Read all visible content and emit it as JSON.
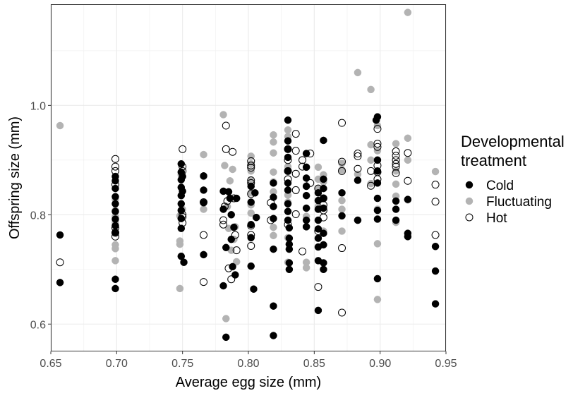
{
  "chart_data": {
    "type": "scatter",
    "xlabel": "Average egg size (mm)",
    "ylabel": "Offspring size (mm)",
    "xlim": [
      0.65,
      0.95
    ],
    "ylim": [
      0.55,
      1.185
    ],
    "x_ticks": [
      "0.65",
      "0.70",
      "0.75",
      "0.80",
      "0.85",
      "0.90",
      "0.95"
    ],
    "x_tick_values": [
      0.65,
      0.7,
      0.75,
      0.8,
      0.85,
      0.9,
      0.95
    ],
    "y_ticks": [
      "0.6",
      "0.8",
      "1.0"
    ],
    "y_tick_values": [
      0.6,
      0.8,
      1.0
    ],
    "grid": true,
    "theme": "bw",
    "legend": {
      "title_lines": [
        "Developmental",
        "treatment"
      ],
      "position": "right",
      "entries": [
        "Cold",
        "Fluctuating",
        "Hot"
      ]
    },
    "series": [
      {
        "name": "Cold",
        "marker": "filled-circle",
        "color": "#000000",
        "points": [
          [
            0.657,
            0.763
          ],
          [
            0.657,
            0.676
          ],
          [
            0.699,
            0.87
          ],
          [
            0.699,
            0.862
          ],
          [
            0.699,
            0.848
          ],
          [
            0.699,
            0.833
          ],
          [
            0.699,
            0.82
          ],
          [
            0.699,
            0.806
          ],
          [
            0.699,
            0.792
          ],
          [
            0.699,
            0.78
          ],
          [
            0.699,
            0.768
          ],
          [
            0.699,
            0.682
          ],
          [
            0.699,
            0.665
          ],
          [
            0.749,
            0.893
          ],
          [
            0.749,
            0.878
          ],
          [
            0.749,
            0.864
          ],
          [
            0.749,
            0.85
          ],
          [
            0.749,
            0.835
          ],
          [
            0.749,
            0.82
          ],
          [
            0.749,
            0.808
          ],
          [
            0.749,
            0.793
          ],
          [
            0.749,
            0.775
          ],
          [
            0.749,
            0.724
          ],
          [
            0.75,
            0.87
          ],
          [
            0.75,
            0.843
          ],
          [
            0.751,
            0.713
          ],
          [
            0.766,
            0.871
          ],
          [
            0.766,
            0.845
          ],
          [
            0.766,
            0.822
          ],
          [
            0.766,
            0.727
          ],
          [
            0.781,
            0.843
          ],
          [
            0.781,
            0.81
          ],
          [
            0.781,
            0.67
          ],
          [
            0.783,
            0.576
          ],
          [
            0.783,
            0.74
          ],
          [
            0.785,
            0.842
          ],
          [
            0.786,
            0.83
          ],
          [
            0.787,
            0.8
          ],
          [
            0.787,
            0.755
          ],
          [
            0.788,
            0.705
          ],
          [
            0.789,
            0.777
          ],
          [
            0.79,
            0.69
          ],
          [
            0.791,
            0.83
          ],
          [
            0.802,
            0.852
          ],
          [
            0.802,
            0.823
          ],
          [
            0.802,
            0.782
          ],
          [
            0.802,
            0.758
          ],
          [
            0.802,
            0.706
          ],
          [
            0.804,
            0.664
          ],
          [
            0.805,
            0.84
          ],
          [
            0.806,
            0.795
          ],
          [
            0.819,
            0.858
          ],
          [
            0.819,
            0.832
          ],
          [
            0.819,
            0.815
          ],
          [
            0.819,
            0.793
          ],
          [
            0.819,
            0.737
          ],
          [
            0.819,
            0.633
          ],
          [
            0.819,
            0.579
          ],
          [
            0.83,
            0.973
          ],
          [
            0.83,
            0.935
          ],
          [
            0.83,
            0.92
          ],
          [
            0.83,
            0.905
          ],
          [
            0.83,
            0.88
          ],
          [
            0.83,
            0.858
          ],
          [
            0.83,
            0.845
          ],
          [
            0.83,
            0.82
          ],
          [
            0.83,
            0.806
          ],
          [
            0.83,
            0.79
          ],
          [
            0.831,
            0.776
          ],
          [
            0.831,
            0.757
          ],
          [
            0.831,
            0.746
          ],
          [
            0.831,
            0.737
          ],
          [
            0.831,
            0.712
          ],
          [
            0.831,
            0.7
          ],
          [
            0.844,
            0.912
          ],
          [
            0.844,
            0.887
          ],
          [
            0.844,
            0.867
          ],
          [
            0.844,
            0.852
          ],
          [
            0.844,
            0.835
          ],
          [
            0.844,
            0.812
          ],
          [
            0.844,
            0.79
          ],
          [
            0.844,
            0.778
          ],
          [
            0.853,
            0.84
          ],
          [
            0.853,
            0.826
          ],
          [
            0.853,
            0.81
          ],
          [
            0.853,
            0.79
          ],
          [
            0.853,
            0.774
          ],
          [
            0.853,
            0.757
          ],
          [
            0.853,
            0.741
          ],
          [
            0.853,
            0.716
          ],
          [
            0.853,
            0.625
          ],
          [
            0.857,
            0.936
          ],
          [
            0.857,
            0.865
          ],
          [
            0.857,
            0.848
          ],
          [
            0.857,
            0.83
          ],
          [
            0.857,
            0.812
          ],
          [
            0.857,
            0.766
          ],
          [
            0.857,
            0.745
          ],
          [
            0.857,
            0.712
          ],
          [
            0.857,
            0.7
          ],
          [
            0.871,
            0.84
          ],
          [
            0.871,
            0.798
          ],
          [
            0.883,
            0.863
          ],
          [
            0.883,
            0.79
          ],
          [
            0.898,
            0.979
          ],
          [
            0.897,
            0.973
          ],
          [
            0.898,
            0.9
          ],
          [
            0.898,
            0.88
          ],
          [
            0.898,
            0.858
          ],
          [
            0.898,
            0.83
          ],
          [
            0.898,
            0.808
          ],
          [
            0.898,
            0.792
          ],
          [
            0.898,
            0.683
          ],
          [
            0.912,
            0.825
          ],
          [
            0.912,
            0.81
          ],
          [
            0.912,
            0.79
          ],
          [
            0.921,
            0.828
          ],
          [
            0.921,
            0.766
          ],
          [
            0.921,
            0.76
          ],
          [
            0.942,
            0.742
          ],
          [
            0.942,
            0.697
          ],
          [
            0.942,
            0.637
          ]
        ]
      },
      {
        "name": "Fluctuating",
        "marker": "grey-circle",
        "color": "#b3b3b3",
        "points": [
          [
            0.657,
            0.963
          ],
          [
            0.699,
            0.828
          ],
          [
            0.699,
            0.808
          ],
          [
            0.699,
            0.797
          ],
          [
            0.699,
            0.786
          ],
          [
            0.699,
            0.745
          ],
          [
            0.699,
            0.738
          ],
          [
            0.699,
            0.716
          ],
          [
            0.748,
            0.798
          ],
          [
            0.748,
            0.752
          ],
          [
            0.748,
            0.746
          ],
          [
            0.748,
            0.665
          ],
          [
            0.749,
            0.873
          ],
          [
            0.75,
            0.81
          ],
          [
            0.766,
            0.91
          ],
          [
            0.766,
            0.87
          ],
          [
            0.766,
            0.822
          ],
          [
            0.766,
            0.81
          ],
          [
            0.781,
            0.983
          ],
          [
            0.782,
            0.89
          ],
          [
            0.783,
            0.61
          ],
          [
            0.784,
            0.815
          ],
          [
            0.785,
            0.775
          ],
          [
            0.786,
            0.862
          ],
          [
            0.787,
            0.735
          ],
          [
            0.788,
            0.883
          ],
          [
            0.789,
            0.755
          ],
          [
            0.79,
            0.778
          ],
          [
            0.791,
            0.714
          ],
          [
            0.802,
            0.907
          ],
          [
            0.802,
            0.893
          ],
          [
            0.802,
            0.88
          ],
          [
            0.802,
            0.862
          ],
          [
            0.802,
            0.84
          ],
          [
            0.802,
            0.818
          ],
          [
            0.802,
            0.803
          ],
          [
            0.819,
            0.946
          ],
          [
            0.819,
            0.933
          ],
          [
            0.819,
            0.913
          ],
          [
            0.819,
            0.878
          ],
          [
            0.819,
            0.86
          ],
          [
            0.819,
            0.842
          ],
          [
            0.819,
            0.777
          ],
          [
            0.819,
            0.762
          ],
          [
            0.83,
            0.955
          ],
          [
            0.83,
            0.943
          ],
          [
            0.83,
            0.888
          ],
          [
            0.83,
            0.836
          ],
          [
            0.83,
            0.823
          ],
          [
            0.83,
            0.758
          ],
          [
            0.83,
            0.713
          ],
          [
            0.844,
            0.853
          ],
          [
            0.844,
            0.797
          ],
          [
            0.844,
            0.778
          ],
          [
            0.844,
            0.713
          ],
          [
            0.844,
            0.703
          ],
          [
            0.853,
            0.887
          ],
          [
            0.853,
            0.865
          ],
          [
            0.853,
            0.848
          ],
          [
            0.853,
            0.815
          ],
          [
            0.857,
            0.873
          ],
          [
            0.857,
            0.86
          ],
          [
            0.857,
            0.77
          ],
          [
            0.871,
            0.894
          ],
          [
            0.871,
            0.882
          ],
          [
            0.871,
            0.826
          ],
          [
            0.871,
            0.81
          ],
          [
            0.871,
            0.77
          ],
          [
            0.883,
            1.06
          ],
          [
            0.883,
            0.874
          ],
          [
            0.883,
            0.79
          ],
          [
            0.893,
            1.029
          ],
          [
            0.893,
            0.928
          ],
          [
            0.893,
            0.9
          ],
          [
            0.893,
            0.857
          ],
          [
            0.898,
            0.963
          ],
          [
            0.898,
            0.917
          ],
          [
            0.898,
            0.9
          ],
          [
            0.898,
            0.88
          ],
          [
            0.898,
            0.81
          ],
          [
            0.898,
            0.747
          ],
          [
            0.898,
            0.645
          ],
          [
            0.912,
            0.93
          ],
          [
            0.912,
            0.88
          ],
          [
            0.912,
            0.856
          ],
          [
            0.912,
            0.834
          ],
          [
            0.912,
            0.786
          ],
          [
            0.921,
            1.17
          ],
          [
            0.921,
            0.94
          ],
          [
            0.921,
            0.9
          ],
          [
            0.921,
            0.827
          ],
          [
            0.942,
            0.879
          ]
        ]
      },
      {
        "name": "Hot",
        "marker": "open-circle",
        "color": "#000000",
        "points": [
          [
            0.657,
            0.713
          ],
          [
            0.699,
            0.902
          ],
          [
            0.699,
            0.888
          ],
          [
            0.699,
            0.88
          ],
          [
            0.699,
            0.855
          ],
          [
            0.699,
            0.776
          ],
          [
            0.699,
            0.767
          ],
          [
            0.699,
            0.76
          ],
          [
            0.75,
            0.92
          ],
          [
            0.75,
            0.888
          ],
          [
            0.75,
            0.88
          ],
          [
            0.75,
            0.8
          ],
          [
            0.75,
            0.796
          ],
          [
            0.75,
            0.785
          ],
          [
            0.766,
            0.823
          ],
          [
            0.766,
            0.763
          ],
          [
            0.766,
            0.677
          ],
          [
            0.781,
            0.79
          ],
          [
            0.781,
            0.782
          ],
          [
            0.782,
            0.815
          ],
          [
            0.783,
            0.963
          ],
          [
            0.783,
            0.92
          ],
          [
            0.784,
            0.825
          ],
          [
            0.785,
            0.702
          ],
          [
            0.787,
            0.682
          ],
          [
            0.788,
            0.915
          ],
          [
            0.789,
            0.83
          ],
          [
            0.79,
            0.763
          ],
          [
            0.791,
            0.735
          ],
          [
            0.802,
            0.898
          ],
          [
            0.802,
            0.89
          ],
          [
            0.802,
            0.886
          ],
          [
            0.802,
            0.863
          ],
          [
            0.802,
            0.858
          ],
          [
            0.802,
            0.838
          ],
          [
            0.802,
            0.78
          ],
          [
            0.802,
            0.763
          ],
          [
            0.802,
            0.743
          ],
          [
            0.817,
            0.822
          ],
          [
            0.817,
            0.79
          ],
          [
            0.83,
            0.92
          ],
          [
            0.83,
            0.9
          ],
          [
            0.83,
            0.88
          ],
          [
            0.83,
            0.865
          ],
          [
            0.83,
            0.782
          ],
          [
            0.836,
            0.948
          ],
          [
            0.836,
            0.917
          ],
          [
            0.836,
            0.875
          ],
          [
            0.836,
            0.845
          ],
          [
            0.836,
            0.801
          ],
          [
            0.841,
            0.9
          ],
          [
            0.841,
            0.888
          ],
          [
            0.841,
            0.733
          ],
          [
            0.847,
            0.912
          ],
          [
            0.847,
            0.858
          ],
          [
            0.853,
            0.848
          ],
          [
            0.853,
            0.77
          ],
          [
            0.853,
            0.668
          ],
          [
            0.857,
            0.83
          ],
          [
            0.857,
            0.818
          ],
          [
            0.857,
            0.808
          ],
          [
            0.857,
            0.795
          ],
          [
            0.871,
            0.968
          ],
          [
            0.871,
            0.897
          ],
          [
            0.871,
            0.88
          ],
          [
            0.871,
            0.739
          ],
          [
            0.871,
            0.621
          ],
          [
            0.883,
            0.912
          ],
          [
            0.883,
            0.907
          ],
          [
            0.883,
            0.884
          ],
          [
            0.893,
            0.88
          ],
          [
            0.893,
            0.853
          ],
          [
            0.898,
            0.957
          ],
          [
            0.898,
            0.93
          ],
          [
            0.898,
            0.924
          ],
          [
            0.898,
            0.89
          ],
          [
            0.898,
            0.878
          ],
          [
            0.898,
            0.865
          ],
          [
            0.912,
            0.916
          ],
          [
            0.912,
            0.908
          ],
          [
            0.912,
            0.9
          ],
          [
            0.912,
            0.893
          ],
          [
            0.912,
            0.888
          ],
          [
            0.912,
            0.876
          ],
          [
            0.921,
            0.913
          ],
          [
            0.921,
            0.862
          ],
          [
            0.942,
            0.855
          ],
          [
            0.942,
            0.824
          ],
          [
            0.942,
            0.763
          ]
        ]
      }
    ]
  }
}
